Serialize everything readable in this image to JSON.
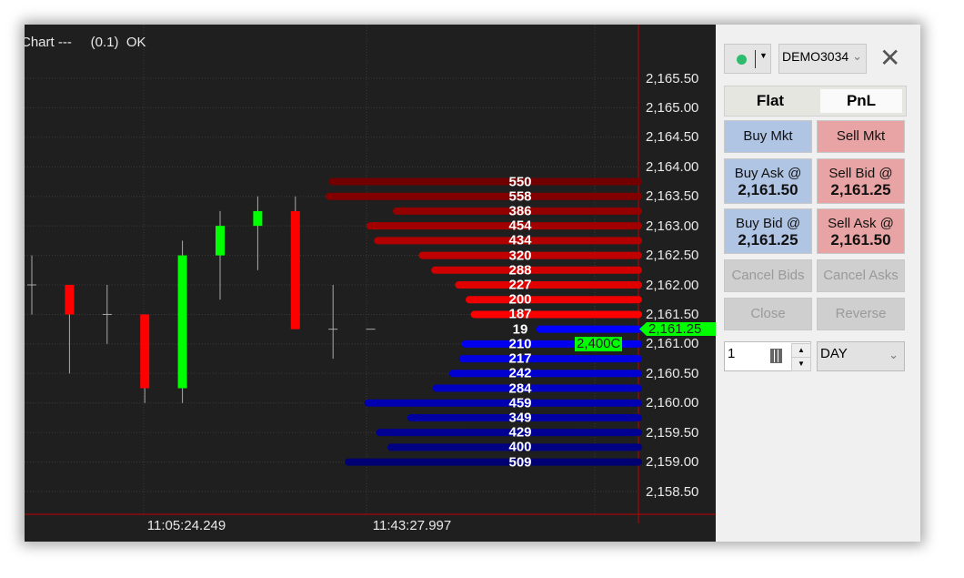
{
  "chart": {
    "status": "Chart ---     (0.1)  OK",
    "price_labels": [
      "2,165.50",
      "2,165.00",
      "2,164.50",
      "2,164.00",
      "2,163.50",
      "2,163.00",
      "2,162.50",
      "2,162.00",
      "2,161.50",
      "2,161.00",
      "2,160.50",
      "2,160.00",
      "2,159.50",
      "2,159.00",
      "2,158.50"
    ],
    "time_labels": [
      "11:05:24.249",
      "11:43:27.997"
    ],
    "last_price": "2,161.25",
    "last_volume": "2,400C",
    "colors": {
      "up": "#00ff00",
      "down": "#ff0000",
      "bid": "#0000ff",
      "ask": "#ff0000",
      "last": "#00ff00"
    }
  },
  "chart_data": {
    "type": "candlestick",
    "ylim": [
      2158.25,
      2165.75
    ],
    "candles": [
      {
        "o": 2162.0,
        "h": 2162.5,
        "l": 2161.5,
        "c": 2162.0
      },
      {
        "o": 2162.0,
        "h": 2162.0,
        "l": 2160.5,
        "c": 2161.5
      },
      {
        "o": 2161.5,
        "h": 2162.0,
        "l": 2161.0,
        "c": 2161.5
      },
      {
        "o": 2161.5,
        "h": 2161.5,
        "l": 2160.0,
        "c": 2160.25
      },
      {
        "o": 2160.25,
        "h": 2162.75,
        "l": 2160.0,
        "c": 2162.5
      },
      {
        "o": 2162.5,
        "h": 2163.25,
        "l": 2161.75,
        "c": 2163.0
      },
      {
        "o": 2163.0,
        "h": 2163.5,
        "l": 2162.25,
        "c": 2163.25
      },
      {
        "o": 2163.25,
        "h": 2163.5,
        "l": 2161.25,
        "c": 2161.25
      },
      {
        "o": 2161.25,
        "h": 2162.0,
        "l": 2160.75,
        "c": 2161.25
      },
      {
        "o": 2161.25,
        "h": 2161.25,
        "l": 2161.25,
        "c": 2161.25
      }
    ],
    "asks": [
      [
        2163.75,
        550
      ],
      [
        2163.5,
        558
      ],
      [
        2163.25,
        386
      ],
      [
        2163.0,
        454
      ],
      [
        2162.75,
        434
      ],
      [
        2162.5,
        320
      ],
      [
        2162.25,
        288
      ],
      [
        2162.0,
        227
      ],
      [
        2161.75,
        200
      ],
      [
        2161.5,
        187
      ]
    ],
    "bids": [
      [
        2161.25,
        19
      ],
      [
        2161.0,
        210
      ],
      [
        2160.75,
        217
      ],
      [
        2160.5,
        242
      ],
      [
        2160.25,
        284
      ],
      [
        2160.0,
        459
      ],
      [
        2159.75,
        349
      ],
      [
        2159.5,
        429
      ],
      [
        2159.25,
        400
      ],
      [
        2159.0,
        509
      ]
    ]
  },
  "panel": {
    "account": "DEMO3034",
    "position": "Flat",
    "pnl": "PnL",
    "buy_mkt": "Buy Mkt",
    "sell_mkt": "Sell Mkt",
    "buy_ask": "Buy Ask @",
    "buy_ask_price": "2,161.50",
    "sell_bid": "Sell Bid @",
    "sell_bid_price": "2,161.25",
    "buy_bid": "Buy Bid @",
    "buy_bid_price": "2,161.25",
    "sell_ask": "Sell Ask @",
    "sell_ask_price": "2,161.50",
    "cancel_bids": "Cancel Bids",
    "cancel_asks": "Cancel Asks",
    "close": "Close",
    "reverse": "Reverse",
    "quantity": "1",
    "tif": "DAY"
  }
}
